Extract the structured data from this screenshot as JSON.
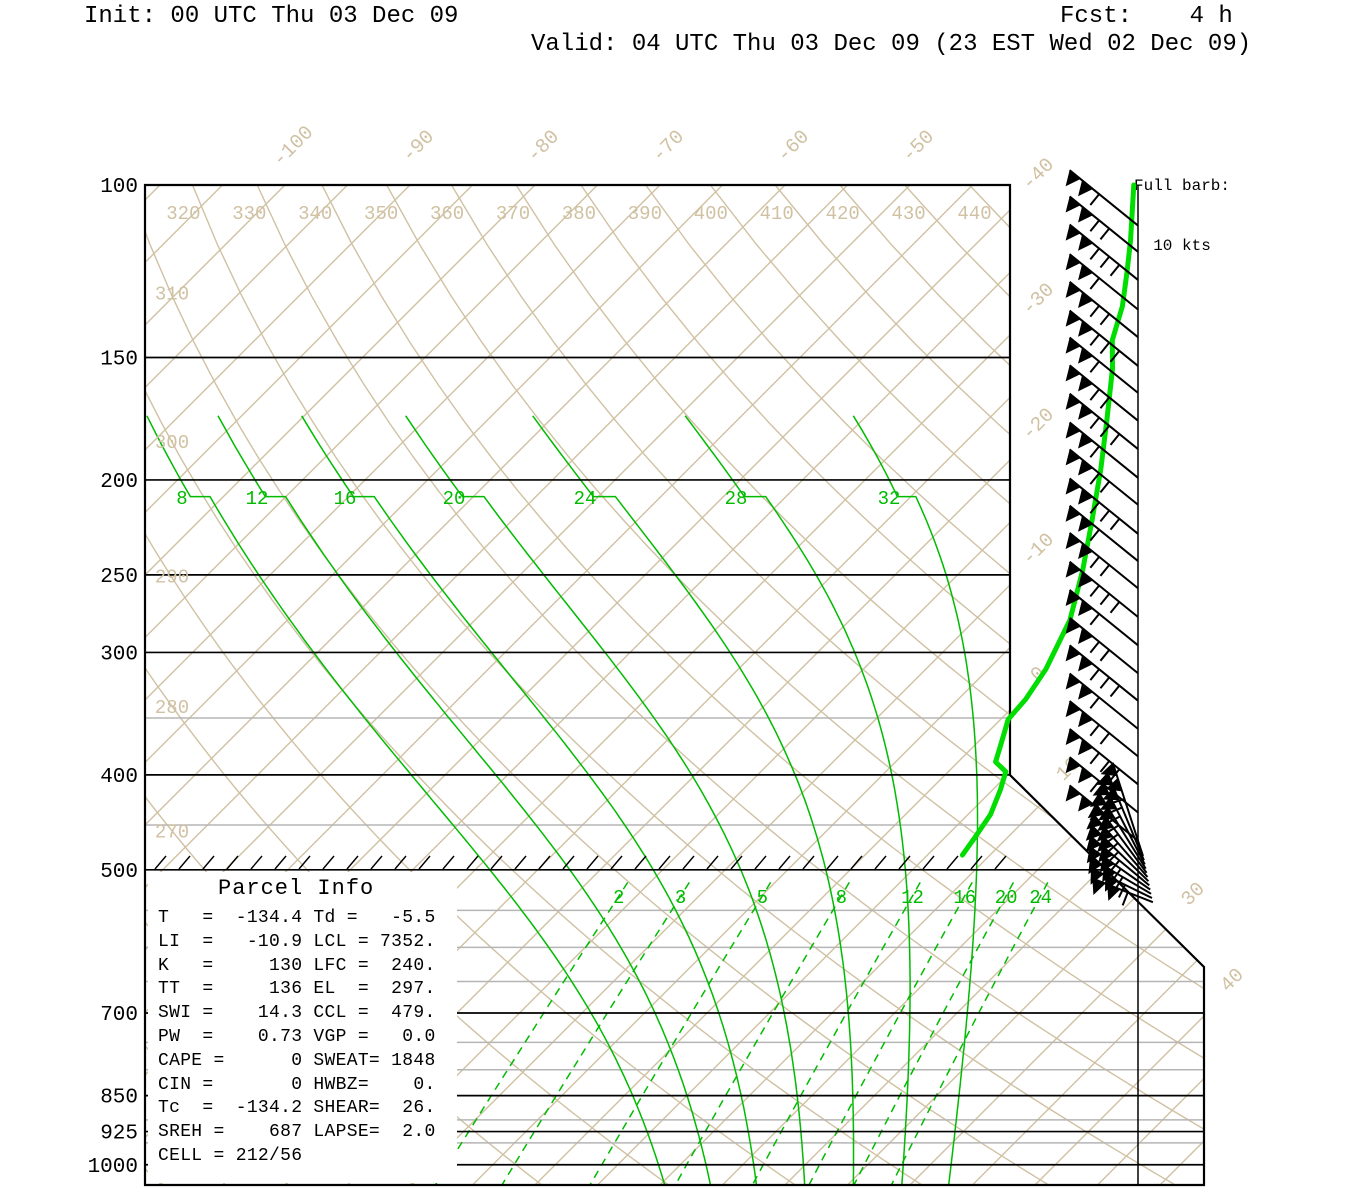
{
  "header": {
    "init": "Init: 00 UTC Thu 03 Dec 09",
    "fcst": "Fcst:    4 h",
    "valid": "Valid: 04 UTC Thu 03 Dec 09 (23 EST Wed 02 Dec 09)"
  },
  "wind_legend": {
    "line1": "Full barb:",
    "line2": "10 kts"
  },
  "parcel_info": {
    "title": "Parcel Info",
    "lines": [
      "T   =  -134.4 Td =   -5.5",
      "LI  =   -10.9 LCL = 7352.",
      "K   =     130 LFC =  240.",
      "TT  =     136 EL  =  297.",
      "SWI =    14.3 CCL =  479.",
      "PW  =    0.73 VGP =   0.0",
      "CAPE =      0 SWEAT= 1848",
      "CIN =       0 HWBZ=    0.",
      "Tc  =  -134.2 SHEAR=  26.",
      "SREH =    687 LAPSE=  2.0",
      "CELL = 212/56"
    ]
  },
  "chart_data": {
    "type": "skewt_logp_sounding",
    "pressure_axis_hpa": [
      100,
      150,
      200,
      250,
      300,
      400,
      500,
      700,
      850,
      925,
      1000
    ],
    "minor_pressure_lines_hpa": [
      350,
      450,
      550,
      600,
      650,
      750,
      800,
      900,
      950
    ],
    "isotherm_step_c": 5,
    "isotherm_label_values_c": [
      -100,
      -90,
      -80,
      -70,
      -60,
      -50,
      -40,
      -30,
      -20,
      -10,
      0,
      10,
      30,
      40
    ],
    "dry_adiabat_theta_k": [
      240,
      250,
      260,
      270,
      280,
      290,
      300,
      310,
      320,
      330,
      340,
      350,
      360,
      370,
      380,
      390,
      400,
      410,
      420,
      430,
      440
    ],
    "dry_adiabat_top_labels_k": [
      320,
      330,
      340,
      350,
      360,
      370,
      380,
      390,
      400,
      410,
      420,
      430,
      440
    ],
    "dry_adiabat_left_labels_k": [
      310,
      300,
      290,
      280,
      270
    ],
    "moist_adiabat_labels": [
      8,
      12,
      16,
      20,
      24,
      28,
      32
    ],
    "mixing_ratio_lines_gkg": [
      2,
      3,
      5,
      8,
      12,
      16,
      20,
      24
    ],
    "temperature_trace_p_t": [
      [
        100,
        -32.1
      ],
      [
        114,
        -27.9
      ],
      [
        123,
        -25.6
      ],
      [
        133,
        -23.3
      ],
      [
        144,
        -21.4
      ],
      [
        154,
        -19.1
      ],
      [
        174,
        -15.4
      ],
      [
        195,
        -12.0
      ],
      [
        220,
        -8.6
      ],
      [
        247,
        -5.4
      ],
      [
        278,
        -2.4
      ],
      [
        312,
        -0.4
      ],
      [
        335,
        0.4
      ],
      [
        351,
        0.6
      ],
      [
        372,
        2.0
      ],
      [
        388,
        3.0
      ],
      [
        397,
        4.6
      ],
      [
        414,
        5.6
      ],
      [
        439,
        6.8
      ],
      [
        464,
        7.4
      ],
      [
        483,
        7.8
      ]
    ],
    "wind_barb_pressures_hpa": [
      110,
      117,
      125,
      134,
      143,
      153,
      163,
      174,
      186,
      199,
      212,
      227,
      242,
      258,
      276,
      295,
      315,
      336,
      359,
      383,
      409,
      437,
      467
    ],
    "surface_wind_cluster_p_hpa": 490,
    "colors": {
      "gridline_tan": "#d0c1a3",
      "green_line": "#00bb00",
      "trace_green": "#00dd00",
      "minor_gray": "#b5b5b5",
      "frame_black": "#000000"
    }
  }
}
